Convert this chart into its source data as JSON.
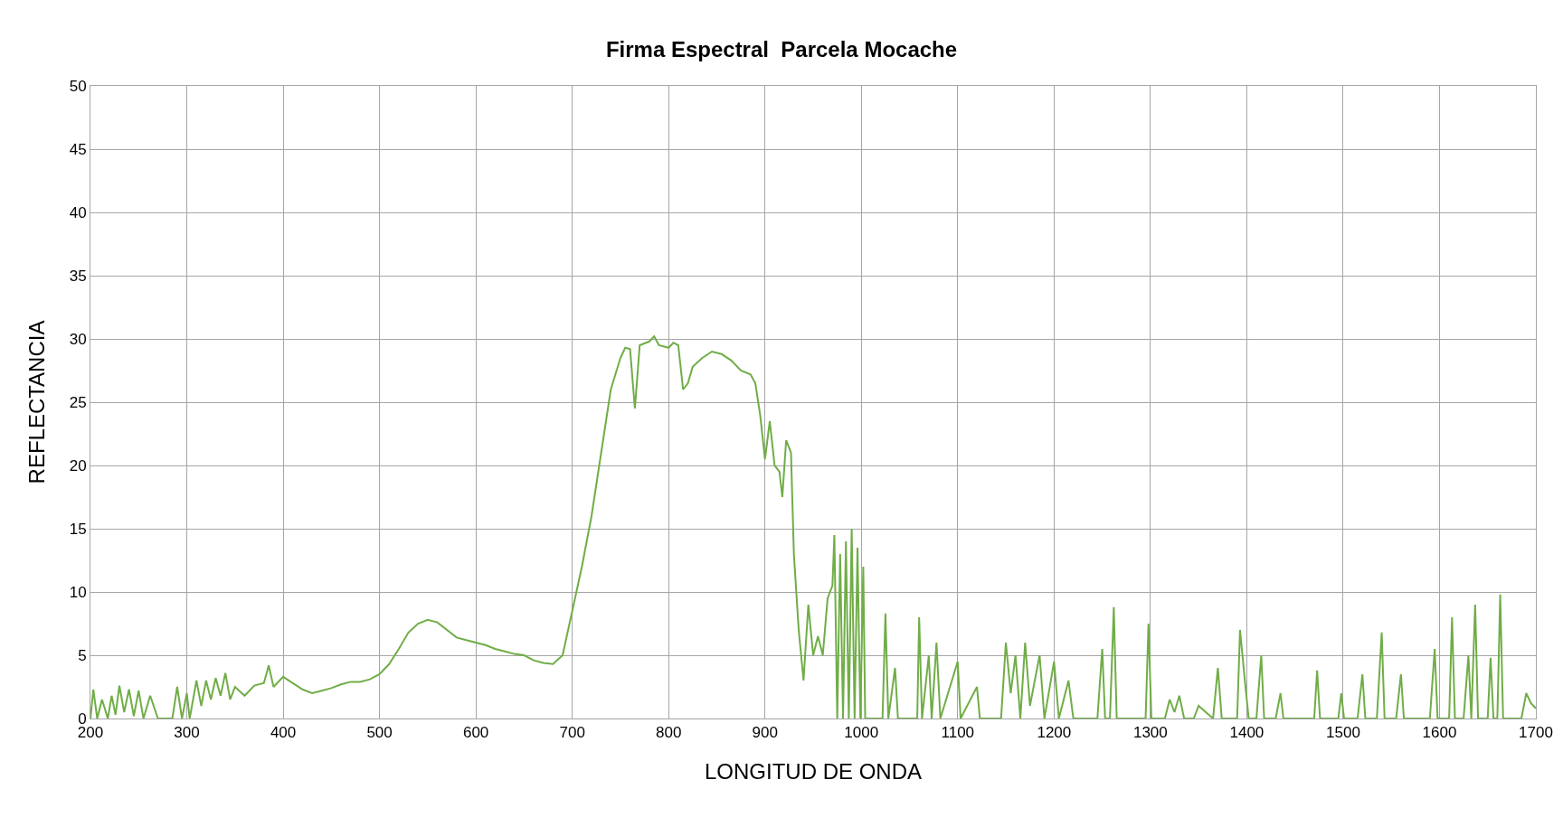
{
  "chart_data": {
    "type": "line",
    "title": "Firma Espectral  Parcela Mocache",
    "xlabel": "LONGITUD DE ONDA",
    "ylabel": "REFLECTANCIA",
    "xlim": [
      200,
      1700
    ],
    "xticks": [
      200,
      300,
      400,
      500,
      600,
      700,
      800,
      900,
      1000,
      1100,
      1200,
      1300,
      1400,
      1500,
      1600,
      1700
    ],
    "ylim": [
      0,
      50
    ],
    "yticks": [
      0,
      5,
      10,
      15,
      20,
      25,
      30,
      35,
      40,
      45,
      50
    ],
    "grid": true,
    "marker": "none",
    "line_style": "solid",
    "series": [
      {
        "color": "#70ad47",
        "x": [
          200,
          203,
          207,
          212,
          218,
          222,
          226,
          230,
          235,
          240,
          245,
          250,
          255,
          262,
          270,
          285,
          290,
          295,
          300,
          303,
          310,
          315,
          320,
          325,
          330,
          335,
          340,
          345,
          350,
          360,
          370,
          380,
          385,
          390,
          400,
          410,
          420,
          430,
          440,
          450,
          460,
          470,
          480,
          490,
          500,
          510,
          520,
          530,
          540,
          550,
          560,
          570,
          580,
          590,
          600,
          610,
          620,
          630,
          640,
          650,
          660,
          670,
          680,
          690,
          700,
          710,
          720,
          730,
          740,
          750,
          755,
          760,
          765,
          770,
          780,
          785,
          790,
          800,
          805,
          810,
          815,
          820,
          825,
          835,
          845,
          855,
          865,
          875,
          885,
          890,
          895,
          900,
          905,
          910,
          915,
          918,
          922,
          927,
          930,
          935,
          940,
          945,
          950,
          955,
          960,
          965,
          970,
          972,
          975,
          978,
          981,
          984,
          987,
          990,
          993,
          996,
          999,
          1002,
          1004,
          1010,
          1022,
          1025,
          1028,
          1035,
          1038,
          1058,
          1060,
          1063,
          1070,
          1073,
          1078,
          1082,
          1100,
          1103,
          1120,
          1123,
          1145,
          1150,
          1155,
          1160,
          1165,
          1170,
          1175,
          1185,
          1190,
          1200,
          1205,
          1215,
          1220,
          1245,
          1250,
          1253,
          1258,
          1262,
          1265,
          1295,
          1298,
          1301,
          1315,
          1320,
          1325,
          1330,
          1335,
          1345,
          1350,
          1365,
          1370,
          1374,
          1390,
          1393,
          1398,
          1402,
          1410,
          1415,
          1418,
          1430,
          1435,
          1438,
          1470,
          1473,
          1476,
          1495,
          1498,
          1501,
          1515,
          1520,
          1523,
          1535,
          1540,
          1543,
          1555,
          1560,
          1563,
          1590,
          1595,
          1598,
          1610,
          1613,
          1616,
          1625,
          1630,
          1633,
          1637,
          1640,
          1650,
          1653,
          1656,
          1660,
          1663,
          1666,
          1685,
          1690,
          1695,
          1700
        ],
        "values": [
          0,
          2.3,
          0,
          1.5,
          0,
          1.8,
          0.3,
          2.6,
          0.5,
          2.3,
          0.2,
          2.2,
          0,
          1.8,
          0,
          0,
          2.5,
          0,
          2,
          0,
          3,
          1,
          3,
          1.5,
          3.2,
          1.8,
          3.6,
          1.5,
          2.5,
          1.8,
          2.6,
          2.8,
          4.2,
          2.5,
          3.3,
          2.8,
          2.3,
          2.0,
          2.2,
          2.4,
          2.7,
          2.9,
          2.9,
          3.1,
          3.5,
          4.3,
          5.5,
          6.8,
          7.5,
          7.8,
          7.6,
          7.0,
          6.4,
          6.2,
          6.0,
          5.8,
          5.5,
          5.3,
          5.1,
          5.0,
          4.6,
          4.4,
          4.3,
          5.0,
          8.5,
          12,
          16,
          21,
          26,
          28.5,
          29.3,
          29.2,
          24.5,
          29.5,
          29.8,
          30.2,
          29.5,
          29.3,
          29.7,
          29.5,
          26,
          26.5,
          27.8,
          28.5,
          29,
          28.8,
          28.3,
          27.5,
          27.2,
          26.5,
          24,
          20.5,
          23.5,
          20,
          19.5,
          17.5,
          22,
          21,
          13,
          7,
          3,
          9,
          5,
          6.5,
          5,
          9.5,
          10.5,
          14.5,
          0,
          13,
          0,
          14,
          0,
          15,
          0,
          13.5,
          0,
          12,
          0,
          0,
          0,
          8.3,
          0,
          4,
          0,
          0,
          8,
          0,
          5,
          0,
          6,
          0,
          4.5,
          0,
          2.5,
          0,
          0,
          6,
          2,
          5,
          0,
          6,
          1,
          5,
          0,
          4.5,
          0,
          3,
          0,
          0,
          5.5,
          0,
          0,
          8.8,
          0,
          0,
          7.5,
          0,
          0,
          1.5,
          0.5,
          1.8,
          0,
          0,
          1,
          0,
          4,
          0,
          0,
          7,
          3,
          0,
          0,
          5,
          0,
          0,
          2,
          0,
          0,
          3.8,
          0,
          0,
          2,
          0,
          0,
          3.5,
          0,
          0,
          6.8,
          0,
          0,
          3.5,
          0,
          0,
          5.5,
          0,
          0,
          8,
          0,
          0,
          5,
          0,
          9,
          0,
          0,
          4.8,
          0,
          0,
          9.8,
          0,
          0,
          2,
          1.2,
          0.8
        ]
      }
    ]
  }
}
